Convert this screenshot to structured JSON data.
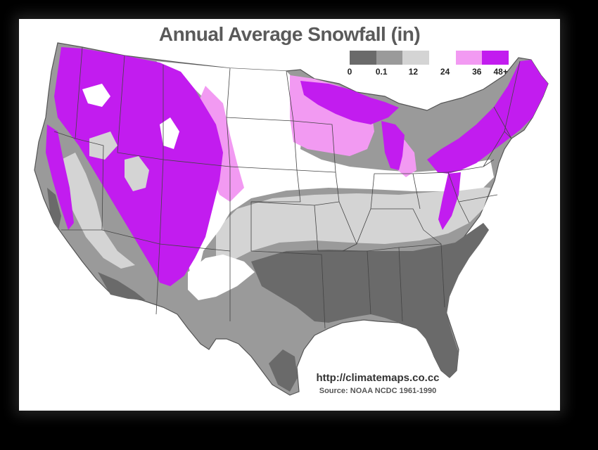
{
  "map": {
    "title": "Annual Average Snowfall (in)",
    "legend": {
      "ticks": [
        "0",
        "0.1",
        "12",
        "24",
        "36",
        "48+"
      ],
      "colors": [
        "#6a6a6a",
        "#9a9a9a",
        "#d4d4d4",
        "#ffffff",
        "#f29af2",
        "#c21cef"
      ]
    },
    "url": "http://climatemaps.co.cc",
    "source": "Source: NOAA NCDC 1961-1990",
    "zone_colors": {
      "band_0": "#6a6a6a",
      "band_0_1": "#9a9a9a",
      "band_12": "#d4d4d4",
      "band_24": "#ffffff",
      "band_36": "#f29af2",
      "band_48": "#c21cef"
    }
  }
}
